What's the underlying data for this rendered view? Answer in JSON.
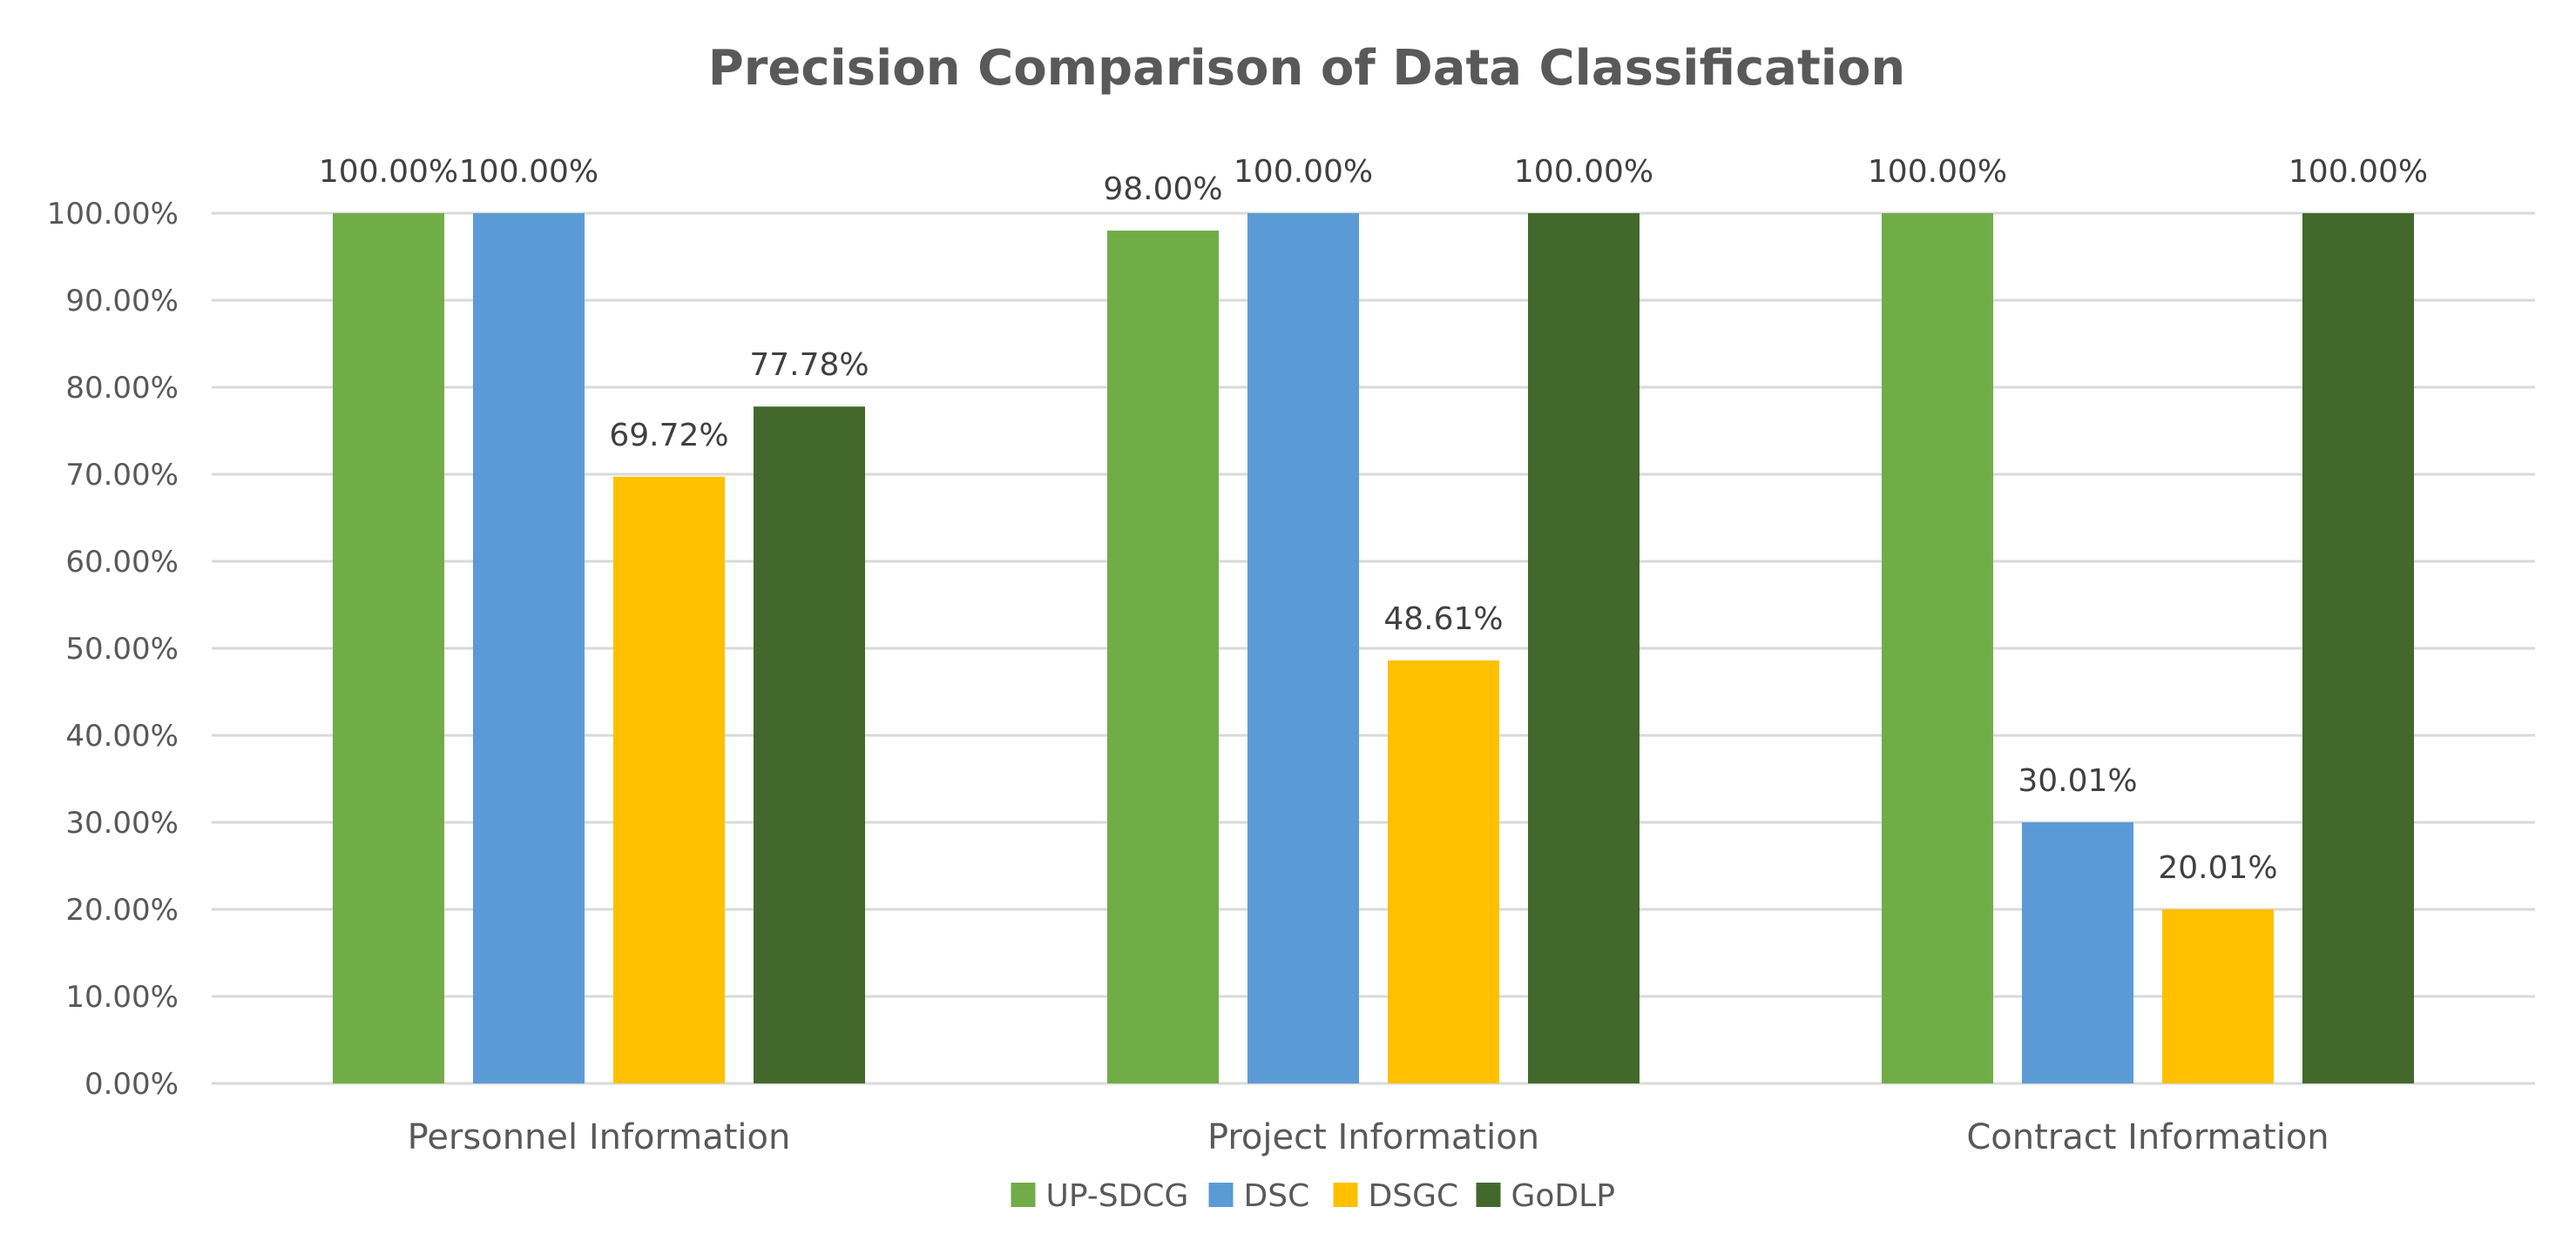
{
  "chart_data": {
    "type": "bar",
    "title": "Precision Comparison of Data Classification",
    "xlabel": "",
    "ylabel": "",
    "ylim": [
      0,
      100
    ],
    "ytick_step": 10,
    "ytick_labels": [
      "0.00%",
      "10.00%",
      "20.00%",
      "30.00%",
      "40.00%",
      "50.00%",
      "60.00%",
      "70.00%",
      "80.00%",
      "90.00%",
      "100.00%"
    ],
    "grid": true,
    "legend_position": "bottom",
    "categories": [
      "Personnel Information",
      "Project Information",
      "Contract Information"
    ],
    "series": [
      {
        "name": "UP-SDCG",
        "color": "#70ad47",
        "values": [
          100.0,
          98.0,
          100.0
        ],
        "labels": [
          "100.00%",
          "98.00%",
          "100.00%"
        ]
      },
      {
        "name": "DSC",
        "color": "#5b9bd5",
        "values": [
          100.0,
          100.0,
          30.01
        ],
        "labels": [
          "100.00%",
          "100.00%",
          "30.01%"
        ]
      },
      {
        "name": "DSGC",
        "color": "#ffc000",
        "values": [
          69.72,
          48.61,
          20.01
        ],
        "labels": [
          "69.72%",
          "48.61%",
          "20.01%"
        ]
      },
      {
        "name": "GoDLP",
        "color": "#43682b",
        "values": [
          77.78,
          100.0,
          100.0
        ],
        "labels": [
          "77.78%",
          "100.00%",
          "100.00%"
        ]
      }
    ]
  }
}
